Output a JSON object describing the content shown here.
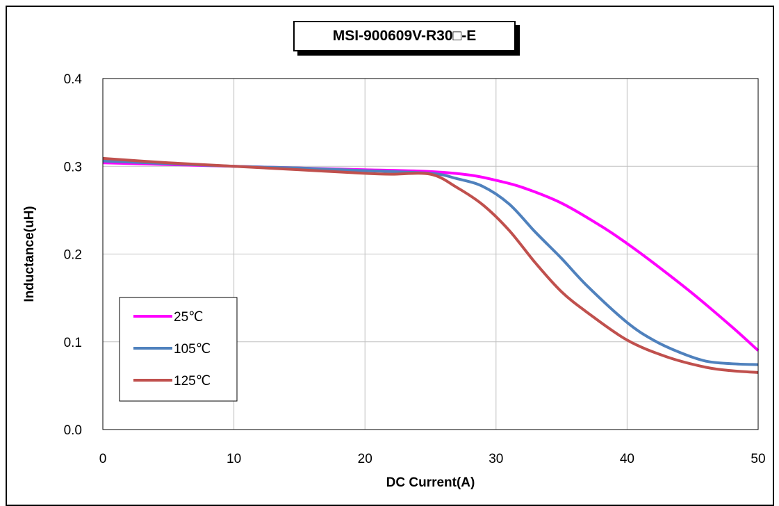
{
  "chart_data": {
    "type": "line",
    "title": "MSI-900609V-R30□-E",
    "xlabel": "DC Current(A)",
    "ylabel": "Inductance(uH)",
    "xlim": [
      0,
      50
    ],
    "ylim": [
      0,
      0.4
    ],
    "x_ticks": [
      "0",
      "10",
      "20",
      "30",
      "40",
      "50"
    ],
    "y_ticks": [
      "0.0",
      "0.1",
      "0.2",
      "0.3",
      "0.4"
    ],
    "grid": true,
    "legend_position": "bottom-left",
    "series": [
      {
        "name": "25℃",
        "color": "#ff00ff",
        "x": [
          0,
          5,
          10,
          15,
          20,
          25,
          28,
          30,
          32,
          35,
          38,
          40,
          42,
          45,
          48,
          50
        ],
        "y": [
          0.304,
          0.302,
          0.3,
          0.298,
          0.296,
          0.294,
          0.29,
          0.284,
          0.276,
          0.258,
          0.232,
          0.212,
          0.19,
          0.155,
          0.117,
          0.09
        ]
      },
      {
        "name": "105℃",
        "color": "#4f81bd",
        "x": [
          0,
          5,
          10,
          15,
          20,
          25,
          27,
          29,
          31,
          33,
          35,
          37,
          40,
          42,
          44,
          46,
          48,
          50
        ],
        "y": [
          0.306,
          0.303,
          0.3,
          0.298,
          0.295,
          0.292,
          0.286,
          0.277,
          0.257,
          0.225,
          0.195,
          0.163,
          0.122,
          0.102,
          0.088,
          0.078,
          0.075,
          0.074
        ]
      },
      {
        "name": "125℃",
        "color": "#c0504d",
        "x": [
          0,
          5,
          10,
          15,
          20,
          22,
          25,
          27,
          29,
          31,
          33,
          35,
          37,
          40,
          43,
          46,
          48,
          50
        ],
        "y": [
          0.309,
          0.304,
          0.3,
          0.296,
          0.292,
          0.291,
          0.291,
          0.276,
          0.256,
          0.227,
          0.19,
          0.157,
          0.133,
          0.102,
          0.083,
          0.071,
          0.067,
          0.065
        ]
      }
    ]
  }
}
